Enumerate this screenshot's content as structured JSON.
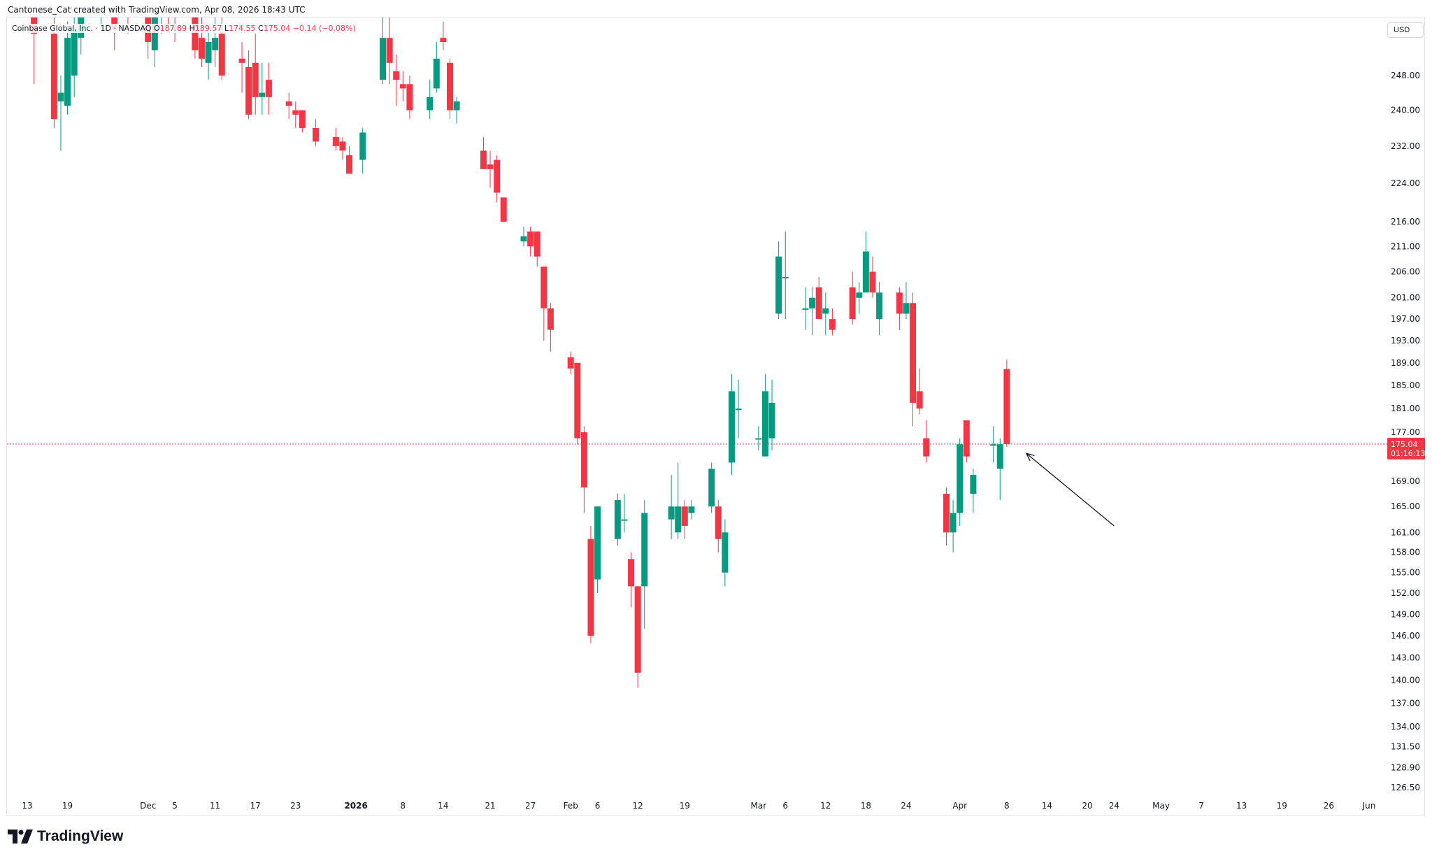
{
  "header": {
    "caption": "Cantonese_Cat created with TradingView.com, Apr 08, 2026 18:43 UTC"
  },
  "legend": {
    "symbol": "Coinbase Global, Inc. · 1D · NASDAQ",
    "open_label": "O",
    "open": "187.89",
    "high_label": "H",
    "high": "189.57",
    "low_label": "L",
    "low": "174.55",
    "close_label": "C",
    "close": "175.04",
    "change": "−0.14 (−0.08%)"
  },
  "currency": "USD",
  "price_label": {
    "price": "175.04",
    "countdown": "01:16:13"
  },
  "brand": {
    "name": "TradingView"
  },
  "colors": {
    "up": "#089981",
    "down": "#f23645",
    "price_line": "#f23645",
    "arrow": "#131722"
  },
  "icons": [
    "tradingview-logo-icon",
    "arrow-annotation-icon"
  ],
  "chart_data": {
    "type": "candlestick",
    "symbol": "COIN",
    "exchange": "NASDAQ",
    "interval": "1D",
    "y_scale": "log",
    "ylim": [
      124.5,
      262.0
    ],
    "y_ticks": [
      "248.00",
      "240.00",
      "232.00",
      "224.00",
      "216.00",
      "211.00",
      "206.00",
      "201.00",
      "197.00",
      "193.00",
      "189.00",
      "185.00",
      "181.00",
      "177.00",
      "169.00",
      "165.00",
      "161.00",
      "158.00",
      "155.00",
      "152.00",
      "149.00",
      "146.00",
      "143.00",
      "140.00",
      "137.00",
      "134.00",
      "131.50",
      "128.90",
      "126.50"
    ],
    "x_ticks": [
      {
        "label": "13",
        "date": "2025-11-13"
      },
      {
        "label": "19",
        "date": "2025-11-19"
      },
      {
        "label": "Dec",
        "date": "2025-12-01"
      },
      {
        "label": "5",
        "date": "2025-12-05"
      },
      {
        "label": "11",
        "date": "2025-12-11"
      },
      {
        "label": "17",
        "date": "2025-12-17"
      },
      {
        "label": "23",
        "date": "2025-12-23"
      },
      {
        "label": "2026",
        "date": "2026-01-01",
        "bold": true
      },
      {
        "label": "8",
        "date": "2026-01-08"
      },
      {
        "label": "14",
        "date": "2026-01-14"
      },
      {
        "label": "21",
        "date": "2026-01-21"
      },
      {
        "label": "27",
        "date": "2026-01-27"
      },
      {
        "label": "Feb",
        "date": "2026-02-02"
      },
      {
        "label": "6",
        "date": "2026-02-06"
      },
      {
        "label": "12",
        "date": "2026-02-12"
      },
      {
        "label": "19",
        "date": "2026-02-19"
      },
      {
        "label": "Mar",
        "date": "2026-03-02"
      },
      {
        "label": "6",
        "date": "2026-03-06"
      },
      {
        "label": "12",
        "date": "2026-03-12"
      },
      {
        "label": "18",
        "date": "2026-03-18"
      },
      {
        "label": "24",
        "date": "2026-03-24"
      },
      {
        "label": "Apr",
        "date": "2026-04-01"
      },
      {
        "label": "8",
        "date": "2026-04-08"
      },
      {
        "label": "14",
        "date": "2026-04-14"
      },
      {
        "label": "20",
        "date": "2026-04-20"
      },
      {
        "label": "24",
        "date": "2026-04-24"
      },
      {
        "label": "May",
        "date": "2026-05-01"
      },
      {
        "label": "7",
        "date": "2026-05-07"
      },
      {
        "label": "13",
        "date": "2026-05-13"
      },
      {
        "label": "19",
        "date": "2026-05-19"
      },
      {
        "label": "26",
        "date": "2026-05-26"
      },
      {
        "label": "Jun",
        "date": "2026-06-01"
      }
    ],
    "last_price": 175.04,
    "candles": [
      {
        "date": "2025-11-14",
        "o": 268,
        "h": 275,
        "l": 246,
        "c": 258
      },
      {
        "date": "2025-11-17",
        "o": 258,
        "h": 262,
        "l": 236,
        "c": 238
      },
      {
        "date": "2025-11-18",
        "o": 242,
        "h": 248,
        "l": 231,
        "c": 244
      },
      {
        "date": "2025-11-19",
        "o": 241,
        "h": 261,
        "l": 239,
        "c": 257
      },
      {
        "date": "2025-11-20",
        "o": 248,
        "h": 262,
        "l": 243,
        "c": 259
      },
      {
        "date": "2025-11-21",
        "o": 257,
        "h": 270,
        "l": 253,
        "c": 266
      },
      {
        "date": "2025-11-24",
        "o": 262,
        "h": 278,
        "l": 259,
        "c": 273
      },
      {
        "date": "2025-11-25",
        "o": 268,
        "h": 280,
        "l": 262,
        "c": 276
      },
      {
        "date": "2025-11-26",
        "o": 272,
        "h": 278,
        "l": 254,
        "c": 259
      },
      {
        "date": "2025-11-28",
        "o": 266,
        "h": 272,
        "l": 258,
        "c": 264
      },
      {
        "date": "2025-12-01",
        "o": 264,
        "h": 270,
        "l": 252,
        "c": 256
      },
      {
        "date": "2025-12-02",
        "o": 254,
        "h": 266,
        "l": 250,
        "c": 262
      },
      {
        "date": "2025-12-03",
        "o": 262,
        "h": 270,
        "l": 258,
        "c": 265
      },
      {
        "date": "2025-12-04",
        "o": 266,
        "h": 272,
        "l": 260,
        "c": 262
      },
      {
        "date": "2025-12-05",
        "o": 260,
        "h": 266,
        "l": 256,
        "c": 259
      },
      {
        "date": "2025-12-08",
        "o": 263,
        "h": 266,
        "l": 252,
        "c": 254
      },
      {
        "date": "2025-12-09",
        "o": 257,
        "h": 262,
        "l": 250,
        "c": 252
      },
      {
        "date": "2025-12-10",
        "o": 251,
        "h": 260,
        "l": 247,
        "c": 256
      },
      {
        "date": "2025-12-11",
        "o": 254,
        "h": 262,
        "l": 250,
        "c": 257
      },
      {
        "date": "2025-12-12",
        "o": 258,
        "h": 262,
        "l": 247,
        "c": 248
      },
      {
        "date": "2025-12-15",
        "o": 252,
        "h": 256,
        "l": 244,
        "c": 251
      },
      {
        "date": "2025-12-16",
        "o": 250,
        "h": 254,
        "l": 238,
        "c": 239
      },
      {
        "date": "2025-12-17",
        "o": 251,
        "h": 258,
        "l": 239,
        "c": 243
      },
      {
        "date": "2025-12-18",
        "o": 243,
        "h": 251,
        "l": 239,
        "c": 244
      },
      {
        "date": "2025-12-19",
        "o": 247,
        "h": 251,
        "l": 239,
        "c": 243
      },
      {
        "date": "2025-12-22",
        "o": 242,
        "h": 244,
        "l": 238,
        "c": 241
      },
      {
        "date": "2025-12-23",
        "o": 240,
        "h": 242,
        "l": 236,
        "c": 239
      },
      {
        "date": "2025-12-24",
        "o": 240,
        "h": 240,
        "l": 235,
        "c": 236
      },
      {
        "date": "2025-12-26",
        "o": 236,
        "h": 238,
        "l": 232,
        "c": 233
      },
      {
        "date": "2025-12-29",
        "o": 234,
        "h": 236,
        "l": 231,
        "c": 232
      },
      {
        "date": "2025-12-30",
        "o": 233,
        "h": 234,
        "l": 229,
        "c": 231
      },
      {
        "date": "2025-12-31",
        "o": 230,
        "h": 232,
        "l": 226,
        "c": 226
      },
      {
        "date": "2026-01-02",
        "o": 229,
        "h": 236,
        "l": 226,
        "c": 235
      },
      {
        "date": "2026-01-05",
        "o": 247,
        "h": 262,
        "l": 246,
        "c": 257
      },
      {
        "date": "2026-01-06",
        "o": 257,
        "h": 262,
        "l": 246,
        "c": 251
      },
      {
        "date": "2026-01-07",
        "o": 249,
        "h": 253,
        "l": 241,
        "c": 247
      },
      {
        "date": "2026-01-08",
        "o": 246,
        "h": 249,
        "l": 242,
        "c": 245
      },
      {
        "date": "2026-01-09",
        "o": 246,
        "h": 248,
        "l": 238,
        "c": 240
      },
      {
        "date": "2026-01-12",
        "o": 240,
        "h": 247,
        "l": 238,
        "c": 243
      },
      {
        "date": "2026-01-13",
        "o": 245,
        "h": 256,
        "l": 244,
        "c": 252
      },
      {
        "date": "2026-01-14",
        "o": 257,
        "h": 261,
        "l": 254,
        "c": 256
      },
      {
        "date": "2026-01-15",
        "o": 251,
        "h": 252,
        "l": 238,
        "c": 240
      },
      {
        "date": "2026-01-16",
        "o": 240,
        "h": 243,
        "l": 237,
        "c": 242
      },
      {
        "date": "2026-01-20",
        "o": 231,
        "h": 234,
        "l": 227,
        "c": 227
      },
      {
        "date": "2026-01-21",
        "o": 228,
        "h": 231,
        "l": 223,
        "c": 227
      },
      {
        "date": "2026-01-22",
        "o": 229,
        "h": 230,
        "l": 220,
        "c": 222
      },
      {
        "date": "2026-01-23",
        "o": 221,
        "h": 221,
        "l": 216,
        "c": 216
      },
      {
        "date": "2026-01-26",
        "o": 212,
        "h": 215,
        "l": 211,
        "c": 213
      },
      {
        "date": "2026-01-27",
        "o": 214,
        "h": 215,
        "l": 209,
        "c": 211
      },
      {
        "date": "2026-01-28",
        "o": 214,
        "h": 214,
        "l": 207,
        "c": 209
      },
      {
        "date": "2026-01-29",
        "o": 207,
        "h": 207,
        "l": 193,
        "c": 199
      },
      {
        "date": "2026-01-30",
        "o": 199,
        "h": 200,
        "l": 191,
        "c": 195
      },
      {
        "date": "2026-02-02",
        "o": 190,
        "h": 191,
        "l": 187,
        "c": 188
      },
      {
        "date": "2026-02-03",
        "o": 189,
        "h": 189,
        "l": 175,
        "c": 176
      },
      {
        "date": "2026-02-04",
        "o": 177,
        "h": 178,
        "l": 164,
        "c": 168
      },
      {
        "date": "2026-02-05",
        "o": 160,
        "h": 162,
        "l": 145,
        "c": 146
      },
      {
        "date": "2026-02-06",
        "o": 154,
        "h": 165,
        "l": 152,
        "c": 165
      },
      {
        "date": "2026-02-09",
        "o": 160,
        "h": 167,
        "l": 159,
        "c": 166
      },
      {
        "date": "2026-02-10",
        "o": 163,
        "h": 167,
        "l": 161,
        "c": 163
      },
      {
        "date": "2026-02-11",
        "o": 157,
        "h": 158,
        "l": 150,
        "c": 153
      },
      {
        "date": "2026-02-12",
        "o": 153,
        "h": 153,
        "l": 139,
        "c": 141
      },
      {
        "date": "2026-02-13",
        "o": 153,
        "h": 166,
        "l": 147,
        "c": 164
      },
      {
        "date": "2026-02-17",
        "o": 163,
        "h": 170,
        "l": 160,
        "c": 165
      },
      {
        "date": "2026-02-18",
        "o": 161,
        "h": 172,
        "l": 160,
        "c": 165
      },
      {
        "date": "2026-02-19",
        "o": 165,
        "h": 166,
        "l": 160,
        "c": 162
      },
      {
        "date": "2026-02-20",
        "o": 164,
        "h": 166,
        "l": 163,
        "c": 165
      },
      {
        "date": "2026-02-23",
        "o": 165,
        "h": 172,
        "l": 164,
        "c": 171
      },
      {
        "date": "2026-02-24",
        "o": 165,
        "h": 166,
        "l": 158,
        "c": 160
      },
      {
        "date": "2026-02-25",
        "o": 155,
        "h": 163,
        "l": 153,
        "c": 161
      },
      {
        "date": "2026-02-26",
        "o": 172,
        "h": 187,
        "l": 170,
        "c": 184
      },
      {
        "date": "2026-02-27",
        "o": 181,
        "h": 186,
        "l": 176,
        "c": 181
      },
      {
        "date": "2026-03-02",
        "o": 176,
        "h": 178,
        "l": 174,
        "c": 176
      },
      {
        "date": "2026-03-03",
        "o": 173,
        "h": 187,
        "l": 173,
        "c": 184
      },
      {
        "date": "2026-03-04",
        "o": 176,
        "h": 186,
        "l": 174,
        "c": 182
      },
      {
        "date": "2026-03-05",
        "o": 198,
        "h": 212,
        "l": 197,
        "c": 209
      },
      {
        "date": "2026-03-06",
        "o": 205,
        "h": 214,
        "l": 197,
        "c": 205
      },
      {
        "date": "2026-03-09",
        "o": 199,
        "h": 203,
        "l": 195,
        "c": 199
      },
      {
        "date": "2026-03-10",
        "o": 199,
        "h": 203,
        "l": 194,
        "c": 201
      },
      {
        "date": "2026-03-11",
        "o": 203,
        "h": 205,
        "l": 197,
        "c": 197
      },
      {
        "date": "2026-03-12",
        "o": 198,
        "h": 202,
        "l": 194,
        "c": 199
      },
      {
        "date": "2026-03-13",
        "o": 197,
        "h": 199,
        "l": 194,
        "c": 195
      },
      {
        "date": "2026-03-16",
        "o": 203,
        "h": 206,
        "l": 196,
        "c": 197
      },
      {
        "date": "2026-03-17",
        "o": 201,
        "h": 204,
        "l": 198,
        "c": 202
      },
      {
        "date": "2026-03-18",
        "o": 202,
        "h": 214,
        "l": 202,
        "c": 210
      },
      {
        "date": "2026-03-19",
        "o": 206,
        "h": 209,
        "l": 201,
        "c": 202
      },
      {
        "date": "2026-03-20",
        "o": 197,
        "h": 204,
        "l": 194,
        "c": 202
      },
      {
        "date": "2026-03-23",
        "o": 202,
        "h": 203,
        "l": 195,
        "c": 198
      },
      {
        "date": "2026-03-24",
        "o": 198,
        "h": 204,
        "l": 197,
        "c": 200
      },
      {
        "date": "2026-03-25",
        "o": 200,
        "h": 202,
        "l": 178,
        "c": 182
      },
      {
        "date": "2026-03-26",
        "o": 184,
        "h": 188,
        "l": 180,
        "c": 181
      },
      {
        "date": "2026-03-27",
        "o": 176,
        "h": 179,
        "l": 172,
        "c": 173
      },
      {
        "date": "2026-03-30",
        "o": 167,
        "h": 168,
        "l": 159,
        "c": 161
      },
      {
        "date": "2026-03-31",
        "o": 161,
        "h": 166,
        "l": 158,
        "c": 164
      },
      {
        "date": "2026-04-01",
        "o": 164,
        "h": 176,
        "l": 162,
        "c": 175
      },
      {
        "date": "2026-04-02",
        "o": 179,
        "h": 179,
        "l": 172,
        "c": 173
      },
      {
        "date": "2026-04-03",
        "o": 167,
        "h": 171,
        "l": 164,
        "c": 170
      },
      {
        "date": "2026-04-06",
        "o": 175,
        "h": 178,
        "l": 172,
        "c": 175
      },
      {
        "date": "2026-04-07",
        "o": 171,
        "h": 176,
        "l": 166,
        "c": 175
      },
      {
        "date": "2026-04-08",
        "o": 187.89,
        "h": 189.57,
        "l": 174.55,
        "c": 175.04
      }
    ],
    "annotations": [
      {
        "type": "arrow",
        "from": {
          "date": "2026-04-24",
          "price": 162
        },
        "to": {
          "date": "2026-04-08",
          "price": 173.5
        }
      }
    ]
  }
}
